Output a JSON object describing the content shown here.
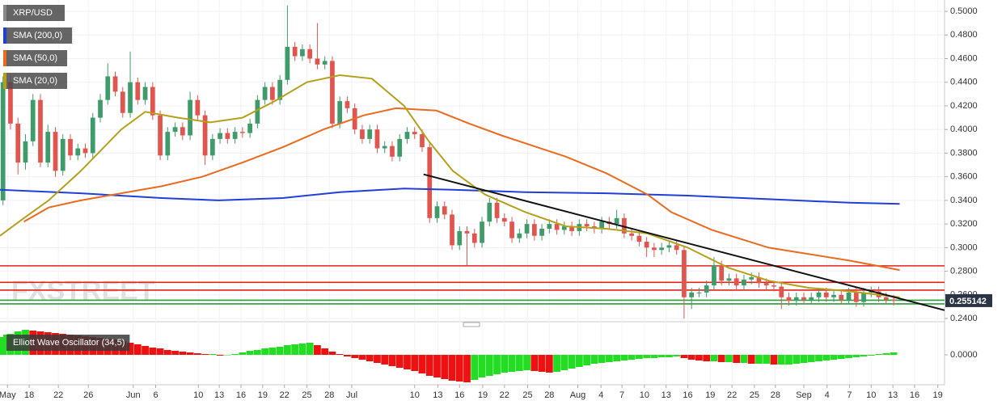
{
  "chart_data": {
    "type": "candlestick",
    "symbol": "XRP/USD",
    "watermark": "FXSTREET",
    "up_color": "#3f9b6a",
    "down_color": "#e0564f",
    "candles": [
      [
        0.34,
        0.445,
        0.336,
        0.44
      ],
      [
        0.44,
        0.446,
        0.4,
        0.405
      ],
      [
        0.405,
        0.41,
        0.362,
        0.372
      ],
      [
        0.372,
        0.396,
        0.366,
        0.39
      ],
      [
        0.39,
        0.43,
        0.386,
        0.425
      ],
      [
        0.425,
        0.43,
        0.368,
        0.372
      ],
      [
        0.372,
        0.404,
        0.368,
        0.398
      ],
      [
        0.398,
        0.402,
        0.36,
        0.365
      ],
      [
        0.365,
        0.396,
        0.361,
        0.392
      ],
      [
        0.392,
        0.396,
        0.374,
        0.378
      ],
      [
        0.378,
        0.388,
        0.374,
        0.384
      ],
      [
        0.384,
        0.388,
        0.376,
        0.38
      ],
      [
        0.38,
        0.414,
        0.376,
        0.41
      ],
      [
        0.41,
        0.43,
        0.406,
        0.425
      ],
      [
        0.425,
        0.456,
        0.421,
        0.445
      ],
      [
        0.445,
        0.449,
        0.428,
        0.432
      ],
      [
        0.432,
        0.436,
        0.41,
        0.414
      ],
      [
        0.414,
        0.466,
        0.41,
        0.44
      ],
      [
        0.44,
        0.444,
        0.421,
        0.425
      ],
      [
        0.425,
        0.44,
        0.421,
        0.436
      ],
      [
        0.436,
        0.44,
        0.408,
        0.412
      ],
      [
        0.412,
        0.416,
        0.374,
        0.378
      ],
      [
        0.378,
        0.402,
        0.374,
        0.398
      ],
      [
        0.398,
        0.406,
        0.394,
        0.402
      ],
      [
        0.402,
        0.406,
        0.391,
        0.395
      ],
      [
        0.395,
        0.432,
        0.391,
        0.425
      ],
      [
        0.425,
        0.429,
        0.408,
        0.412
      ],
      [
        0.412,
        0.416,
        0.37,
        0.378
      ],
      [
        0.378,
        0.396,
        0.374,
        0.392
      ],
      [
        0.392,
        0.401,
        0.388,
        0.397
      ],
      [
        0.397,
        0.401,
        0.388,
        0.392
      ],
      [
        0.392,
        0.402,
        0.388,
        0.398
      ],
      [
        0.398,
        0.402,
        0.393,
        0.397
      ],
      [
        0.397,
        0.409,
        0.393,
        0.405
      ],
      [
        0.405,
        0.429,
        0.401,
        0.425
      ],
      [
        0.425,
        0.44,
        0.421,
        0.436
      ],
      [
        0.436,
        0.44,
        0.421,
        0.425
      ],
      [
        0.425,
        0.446,
        0.421,
        0.442
      ],
      [
        0.442,
        0.505,
        0.438,
        0.47
      ],
      [
        0.47,
        0.474,
        0.458,
        0.462
      ],
      [
        0.462,
        0.472,
        0.458,
        0.468
      ],
      [
        0.468,
        0.472,
        0.456,
        0.46
      ],
      [
        0.46,
        0.49,
        0.451,
        0.455
      ],
      [
        0.455,
        0.462,
        0.451,
        0.458
      ],
      [
        0.458,
        0.462,
        0.401,
        0.405
      ],
      [
        0.405,
        0.428,
        0.401,
        0.424
      ],
      [
        0.424,
        0.428,
        0.414,
        0.418
      ],
      [
        0.418,
        0.422,
        0.396,
        0.4
      ],
      [
        0.4,
        0.404,
        0.388,
        0.392
      ],
      [
        0.392,
        0.404,
        0.388,
        0.4
      ],
      [
        0.4,
        0.404,
        0.38,
        0.384
      ],
      [
        0.384,
        0.39,
        0.38,
        0.386
      ],
      [
        0.386,
        0.39,
        0.373,
        0.377
      ],
      [
        0.377,
        0.396,
        0.373,
        0.392
      ],
      [
        0.392,
        0.402,
        0.388,
        0.398
      ],
      [
        0.398,
        0.402,
        0.392,
        0.396
      ],
      [
        0.396,
        0.4,
        0.381,
        0.385
      ],
      [
        0.385,
        0.389,
        0.321,
        0.325
      ],
      [
        0.325,
        0.339,
        0.321,
        0.335
      ],
      [
        0.335,
        0.339,
        0.324,
        0.328
      ],
      [
        0.328,
        0.332,
        0.298,
        0.302
      ],
      [
        0.302,
        0.318,
        0.298,
        0.314
      ],
      [
        0.314,
        0.318,
        0.285,
        0.312
      ],
      [
        0.312,
        0.316,
        0.3,
        0.304
      ],
      [
        0.304,
        0.326,
        0.3,
        0.322
      ],
      [
        0.322,
        0.342,
        0.318,
        0.338
      ],
      [
        0.338,
        0.342,
        0.321,
        0.325
      ],
      [
        0.325,
        0.329,
        0.318,
        0.322
      ],
      [
        0.322,
        0.326,
        0.304,
        0.308
      ],
      [
        0.308,
        0.316,
        0.304,
        0.312
      ],
      [
        0.312,
        0.324,
        0.308,
        0.32
      ],
      [
        0.32,
        0.324,
        0.306,
        0.31
      ],
      [
        0.31,
        0.32,
        0.306,
        0.316
      ],
      [
        0.316,
        0.324,
        0.312,
        0.32
      ],
      [
        0.32,
        0.324,
        0.311,
        0.315
      ],
      [
        0.315,
        0.322,
        0.311,
        0.318
      ],
      [
        0.318,
        0.322,
        0.31,
        0.314
      ],
      [
        0.314,
        0.324,
        0.31,
        0.32
      ],
      [
        0.32,
        0.324,
        0.314,
        0.318
      ],
      [
        0.318,
        0.322,
        0.312,
        0.316
      ],
      [
        0.316,
        0.326,
        0.312,
        0.322
      ],
      [
        0.322,
        0.326,
        0.316,
        0.32
      ],
      [
        0.32,
        0.332,
        0.316,
        0.325
      ],
      [
        0.325,
        0.329,
        0.308,
        0.312
      ],
      [
        0.312,
        0.316,
        0.306,
        0.31
      ],
      [
        0.31,
        0.314,
        0.301,
        0.305
      ],
      [
        0.305,
        0.309,
        0.292,
        0.3
      ],
      [
        0.3,
        0.304,
        0.292,
        0.298
      ],
      [
        0.298,
        0.304,
        0.294,
        0.3
      ],
      [
        0.3,
        0.306,
        0.296,
        0.302
      ],
      [
        0.302,
        0.306,
        0.294,
        0.298
      ],
      [
        0.298,
        0.302,
        0.24,
        0.258
      ],
      [
        0.258,
        0.266,
        0.248,
        0.262
      ],
      [
        0.262,
        0.266,
        0.258,
        0.262
      ],
      [
        0.262,
        0.272,
        0.258,
        0.268
      ],
      [
        0.268,
        0.292,
        0.264,
        0.285
      ],
      [
        0.285,
        0.289,
        0.268,
        0.272
      ],
      [
        0.272,
        0.278,
        0.268,
        0.274
      ],
      [
        0.274,
        0.278,
        0.264,
        0.268
      ],
      [
        0.268,
        0.277,
        0.264,
        0.273
      ],
      [
        0.273,
        0.279,
        0.269,
        0.275
      ],
      [
        0.275,
        0.279,
        0.266,
        0.27
      ],
      [
        0.27,
        0.274,
        0.264,
        0.268
      ],
      [
        0.268,
        0.272,
        0.263,
        0.267
      ],
      [
        0.267,
        0.271,
        0.248,
        0.258
      ],
      [
        0.258,
        0.262,
        0.251,
        0.255
      ],
      [
        0.255,
        0.262,
        0.251,
        0.258
      ],
      [
        0.258,
        0.262,
        0.252,
        0.256
      ],
      [
        0.256,
        0.262,
        0.252,
        0.258
      ],
      [
        0.258,
        0.266,
        0.254,
        0.262
      ],
      [
        0.262,
        0.266,
        0.254,
        0.258
      ],
      [
        0.258,
        0.264,
        0.254,
        0.26
      ],
      [
        0.26,
        0.264,
        0.252,
        0.256
      ],
      [
        0.256,
        0.266,
        0.252,
        0.262
      ],
      [
        0.262,
        0.266,
        0.25,
        0.254
      ],
      [
        0.254,
        0.266,
        0.25,
        0.262
      ],
      [
        0.262,
        0.267,
        0.258,
        0.263
      ],
      [
        0.263,
        0.267,
        0.254,
        0.258
      ],
      [
        0.258,
        0.262,
        0.252,
        0.256
      ],
      [
        0.256,
        0.26,
        0.251,
        0.255142
      ]
    ],
    "lines": [
      {
        "name": "SMA (200,0)",
        "color": "#1f3fd6",
        "x": [
          -0.4,
          10.4,
          21.2,
          28.8,
          37.4,
          45.0,
          53.6,
          60.1,
          69.8,
          80.6,
          91.5,
          102.3,
          113.1,
          119.8
        ],
        "values": [
          0.349,
          0.346,
          0.342,
          0.34,
          0.342,
          0.347,
          0.35,
          0.349,
          0.347,
          0.346,
          0.344,
          0.341,
          0.338,
          0.337
        ]
      },
      {
        "name": "SMA (50,0)",
        "color": "#ea6a1f",
        "x": [
          2.8,
          6.1,
          10.4,
          15.8,
          21.2,
          26.6,
          32.0,
          37.4,
          42.8,
          48.2,
          52.5,
          57.9,
          62.3,
          66.6,
          70.9,
          75.2,
          80.6,
          86.1,
          89.3,
          94.7,
          102.3,
          113.1,
          119.8
        ],
        "values": [
          0.322,
          0.334,
          0.34,
          0.346,
          0.352,
          0.36,
          0.372,
          0.385,
          0.4,
          0.412,
          0.418,
          0.416,
          0.405,
          0.395,
          0.386,
          0.377,
          0.363,
          0.345,
          0.33,
          0.315,
          0.3,
          0.289,
          0.281
        ]
      },
      {
        "name": "SMA (20,0)",
        "color": "#b5a01c",
        "x": [
          -0.4,
          2.8,
          6.1,
          10.4,
          15.8,
          19.0,
          23.4,
          27.7,
          32.0,
          36.3,
          40.6,
          45.0,
          49.3,
          53.6,
          56.9,
          60.1,
          64.4,
          69.8,
          75.2,
          80.6,
          86.1,
          91.5,
          96.9,
          102.3,
          107.7,
          113.1,
          119.8
        ],
        "values": [
          0.31,
          0.325,
          0.34,
          0.365,
          0.4,
          0.415,
          0.41,
          0.406,
          0.41,
          0.424,
          0.44,
          0.446,
          0.443,
          0.42,
          0.39,
          0.365,
          0.345,
          0.33,
          0.318,
          0.316,
          0.312,
          0.3,
          0.283,
          0.272,
          0.266,
          0.263,
          0.258
        ]
      }
    ],
    "trendline": {
      "color": "#111111",
      "x": [
        56.2,
        125.8
      ],
      "values": [
        0.362,
        0.247
      ]
    },
    "levels": [
      {
        "value": 0.2846,
        "color": "#e0231b"
      },
      {
        "value": 0.2706,
        "color": "#e0231b"
      },
      {
        "value": 0.264,
        "color": "#e0231b"
      },
      {
        "value": 0.2555,
        "color": "#2e9c3a"
      },
      {
        "value": 0.2524,
        "color": "#2e9c3a"
      }
    ],
    "last_price": 0.255142,
    "xlim": [
      -0.4,
      125.8
    ],
    "ylim": [
      0.2373,
      0.5096
    ],
    "yticks": [
      {
        "value": 0.24,
        "label": "0.2400"
      },
      {
        "value": 0.26,
        "label": "0.2600"
      },
      {
        "value": 0.28,
        "label": "0.2800"
      },
      {
        "value": 0.3,
        "label": "0.3000"
      },
      {
        "value": 0.32,
        "label": "0.3200"
      },
      {
        "value": 0.34,
        "label": "0.3400"
      },
      {
        "value": 0.36,
        "label": "0.3600"
      },
      {
        "value": 0.38,
        "label": "0.3800"
      },
      {
        "value": 0.4,
        "label": "0.4000"
      },
      {
        "value": 0.42,
        "label": "0.4200"
      },
      {
        "value": 0.44,
        "label": "0.4400"
      },
      {
        "value": 0.46,
        "label": "0.4600"
      },
      {
        "value": 0.48,
        "label": "0.4800"
      },
      {
        "value": 0.5,
        "label": "0.5000"
      }
    ],
    "xticks": [
      {
        "value": 0.6,
        "label": "May"
      },
      {
        "value": 3.5,
        "label": "18"
      },
      {
        "value": 7.4,
        "label": "22"
      },
      {
        "value": 11.4,
        "label": "26"
      },
      {
        "value": 17.4,
        "label": "Jun"
      },
      {
        "value": 20.4,
        "label": "6"
      },
      {
        "value": 26.1,
        "label": "10"
      },
      {
        "value": 28.9,
        "label": "13"
      },
      {
        "value": 31.8,
        "label": "16"
      },
      {
        "value": 34.7,
        "label": "19"
      },
      {
        "value": 37.6,
        "label": "22"
      },
      {
        "value": 40.6,
        "label": "25"
      },
      {
        "value": 43.6,
        "label": "28"
      },
      {
        "value": 46.6,
        "label": "Jul"
      },
      {
        "value": 55.0,
        "label": "10"
      },
      {
        "value": 58.1,
        "label": "13"
      },
      {
        "value": 61.0,
        "label": "16"
      },
      {
        "value": 64.1,
        "label": "19"
      },
      {
        "value": 67.0,
        "label": "22"
      },
      {
        "value": 70.1,
        "label": "25"
      },
      {
        "value": 73.0,
        "label": "28"
      },
      {
        "value": 76.8,
        "label": "Aug"
      },
      {
        "value": 79.9,
        "label": "4"
      },
      {
        "value": 82.7,
        "label": "7"
      },
      {
        "value": 85.7,
        "label": "10"
      },
      {
        "value": 88.6,
        "label": "13"
      },
      {
        "value": 91.5,
        "label": "16"
      },
      {
        "value": 94.5,
        "label": "19"
      },
      {
        "value": 97.4,
        "label": "22"
      },
      {
        "value": 100.4,
        "label": "25"
      },
      {
        "value": 103.2,
        "label": "28"
      },
      {
        "value": 107.0,
        "label": "Sep"
      },
      {
        "value": 110.1,
        "label": "4"
      },
      {
        "value": 113.1,
        "label": "7"
      },
      {
        "value": 116.0,
        "label": "10"
      },
      {
        "value": 118.9,
        "label": "13"
      },
      {
        "value": 121.8,
        "label": "16"
      },
      {
        "value": 124.9,
        "label": "19"
      }
    ],
    "oscillator": {
      "name": "Elliott Wave Oscillator (34,5)",
      "up_color": "#22dd22",
      "down_color": "#ee1111",
      "ylim": [
        -0.035,
        0.035
      ],
      "yticks": [
        {
          "value": 0,
          "label": "0.0000"
        }
      ],
      "values": [
        0.022,
        0.026,
        0.029,
        0.031,
        0.03,
        0.029,
        0.028,
        0.027,
        0.026,
        0.025,
        0.024,
        0.023,
        0.022,
        0.021,
        0.02,
        0.019,
        0.017,
        0.015,
        0.013,
        0.011,
        0.009,
        0.008,
        0.006,
        0.005,
        0.004,
        0.003,
        0.002,
        0.001,
        0.001,
        -0.001,
        -0.0005,
        0.001,
        0.003,
        0.005,
        0.006,
        0.008,
        0.009,
        0.01,
        0.012,
        0.013,
        0.014,
        0.015,
        0.012,
        0.008,
        0.004,
        0.001,
        -0.002,
        -0.004,
        -0.006,
        -0.008,
        -0.01,
        -0.012,
        -0.014,
        -0.016,
        -0.018,
        -0.02,
        -0.023,
        -0.026,
        -0.028,
        -0.03,
        -0.032,
        -0.033,
        -0.034,
        -0.031,
        -0.028,
        -0.026,
        -0.024,
        -0.022,
        -0.021,
        -0.02,
        -0.019,
        -0.02,
        -0.021,
        -0.022,
        -0.021,
        -0.019,
        -0.017,
        -0.015,
        -0.013,
        -0.011,
        -0.01,
        -0.009,
        -0.008,
        -0.007,
        -0.006,
        -0.005,
        -0.004,
        -0.004,
        -0.003,
        -0.003,
        -0.002,
        -0.004,
        -0.006,
        -0.007,
        -0.008,
        -0.008,
        -0.009,
        -0.009,
        -0.01,
        -0.01,
        -0.011,
        -0.011,
        -0.011,
        -0.012,
        -0.012,
        -0.012,
        -0.011,
        -0.01,
        -0.009,
        -0.008,
        -0.007,
        -0.006,
        -0.005,
        -0.004,
        -0.003,
        -0.002,
        -0.001,
        0.001,
        0.002,
        0.003
      ]
    }
  }
}
